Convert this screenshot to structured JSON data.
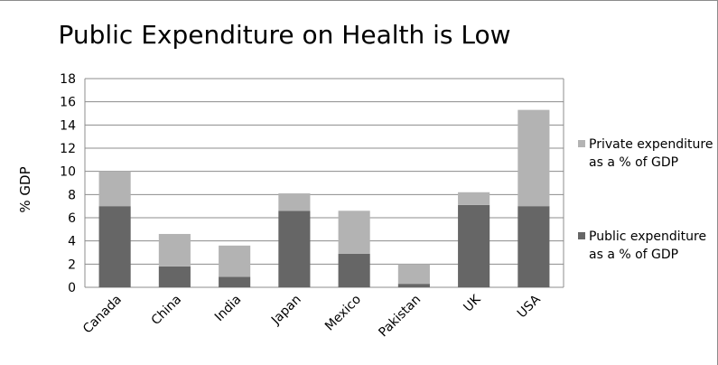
{
  "chart_data": {
    "type": "bar",
    "stacked": true,
    "title": "Public Expenditure on Health is Low",
    "xlabel": "",
    "ylabel": "% GDP",
    "ylim": [
      0,
      18
    ],
    "yticks": [
      0,
      2,
      4,
      6,
      8,
      10,
      12,
      14,
      16,
      18
    ],
    "grid": true,
    "legend_position": "right",
    "categories": [
      "Canada",
      "China",
      "India",
      "Japan",
      "Mexico",
      "Pakistan",
      "UK",
      "USA"
    ],
    "series": [
      {
        "name": "Public expenditure as a % of GDP",
        "color": "#666666",
        "values": [
          7.0,
          1.8,
          0.9,
          6.6,
          2.9,
          0.3,
          7.1,
          7.0
        ]
      },
      {
        "name": "Private expenditure as a % of GDP",
        "color": "#b3b3b3",
        "values": [
          3.0,
          2.8,
          2.7,
          1.5,
          3.7,
          1.7,
          1.1,
          8.3
        ]
      }
    ]
  }
}
